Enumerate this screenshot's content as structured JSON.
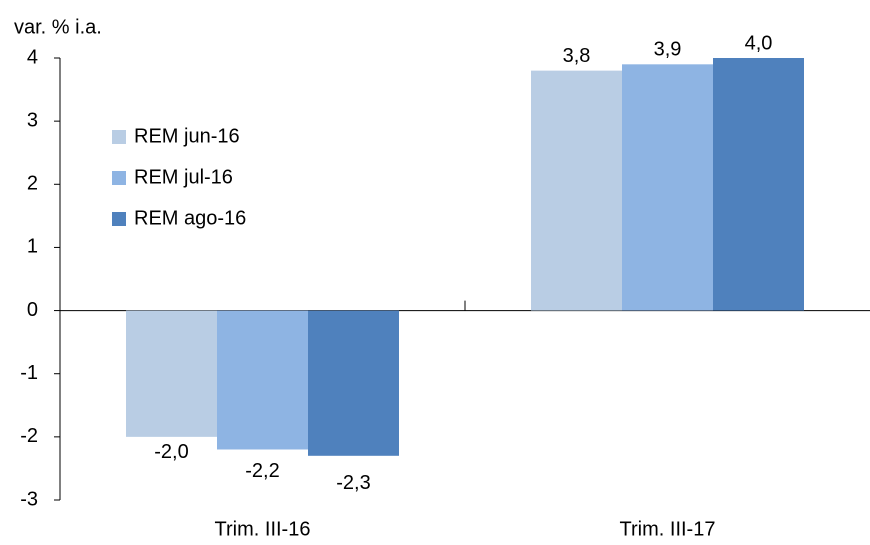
{
  "chart_data": {
    "type": "bar",
    "y_label": "var. % i.a.",
    "categories": [
      "Trim. III-16",
      "Trim. III-17"
    ],
    "series": [
      {
        "name": "REM jun-16",
        "color": "#b9cde4",
        "values": [
          -2.0,
          3.8
        ],
        "value_labels": [
          "-2,0",
          "3,8"
        ]
      },
      {
        "name": "REM jul-16",
        "color": "#8eb4e3",
        "values": [
          -2.2,
          3.9
        ],
        "value_labels": [
          "-2,2",
          "3,9"
        ]
      },
      {
        "name": "REM ago-16",
        "color": "#4f81bd",
        "values": [
          -2.3,
          4.0
        ],
        "value_labels": [
          "-2,3",
          "4,0"
        ]
      }
    ],
    "ylim": [
      -3,
      4
    ],
    "yticks": [
      -3,
      -2,
      -1,
      0,
      1,
      2,
      3,
      4
    ],
    "grid": false,
    "legend": "upper left"
  }
}
